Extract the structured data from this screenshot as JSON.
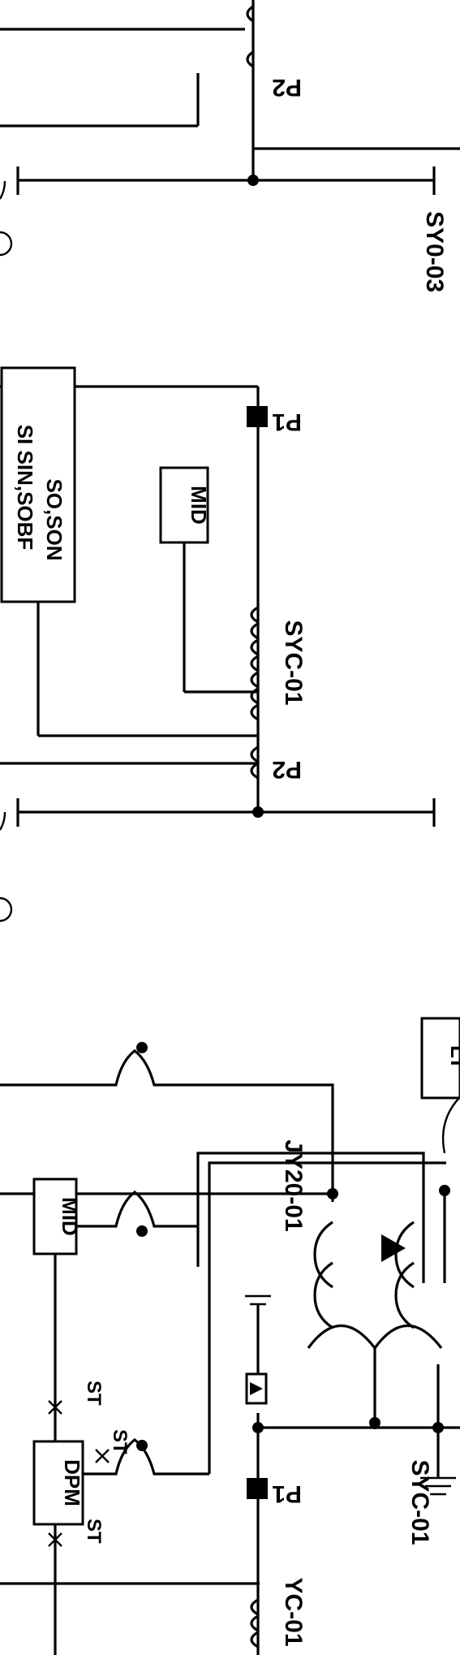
{
  "diagram_data": {
    "title": "",
    "labels": {
      "p2_top": "P2",
      "syo_top": "SY0-03",
      "p1_mid": "P1",
      "p2_mid": "P2",
      "ct_mid": "SYC-01",
      "box_line1": "SI SIN,SOBF",
      "box_line2": "SO,SON",
      "mid_small": "MID",
      "mid_low": "MID",
      "dpm": "DPM",
      "st1": "ST",
      "st2": "ST",
      "st3": "ST",
      "lt": "LT",
      "p1_low": "P1",
      "yc_low": "YC-01",
      "jy_low": "JY20-01",
      "syc_low": "SYC-01"
    }
  }
}
